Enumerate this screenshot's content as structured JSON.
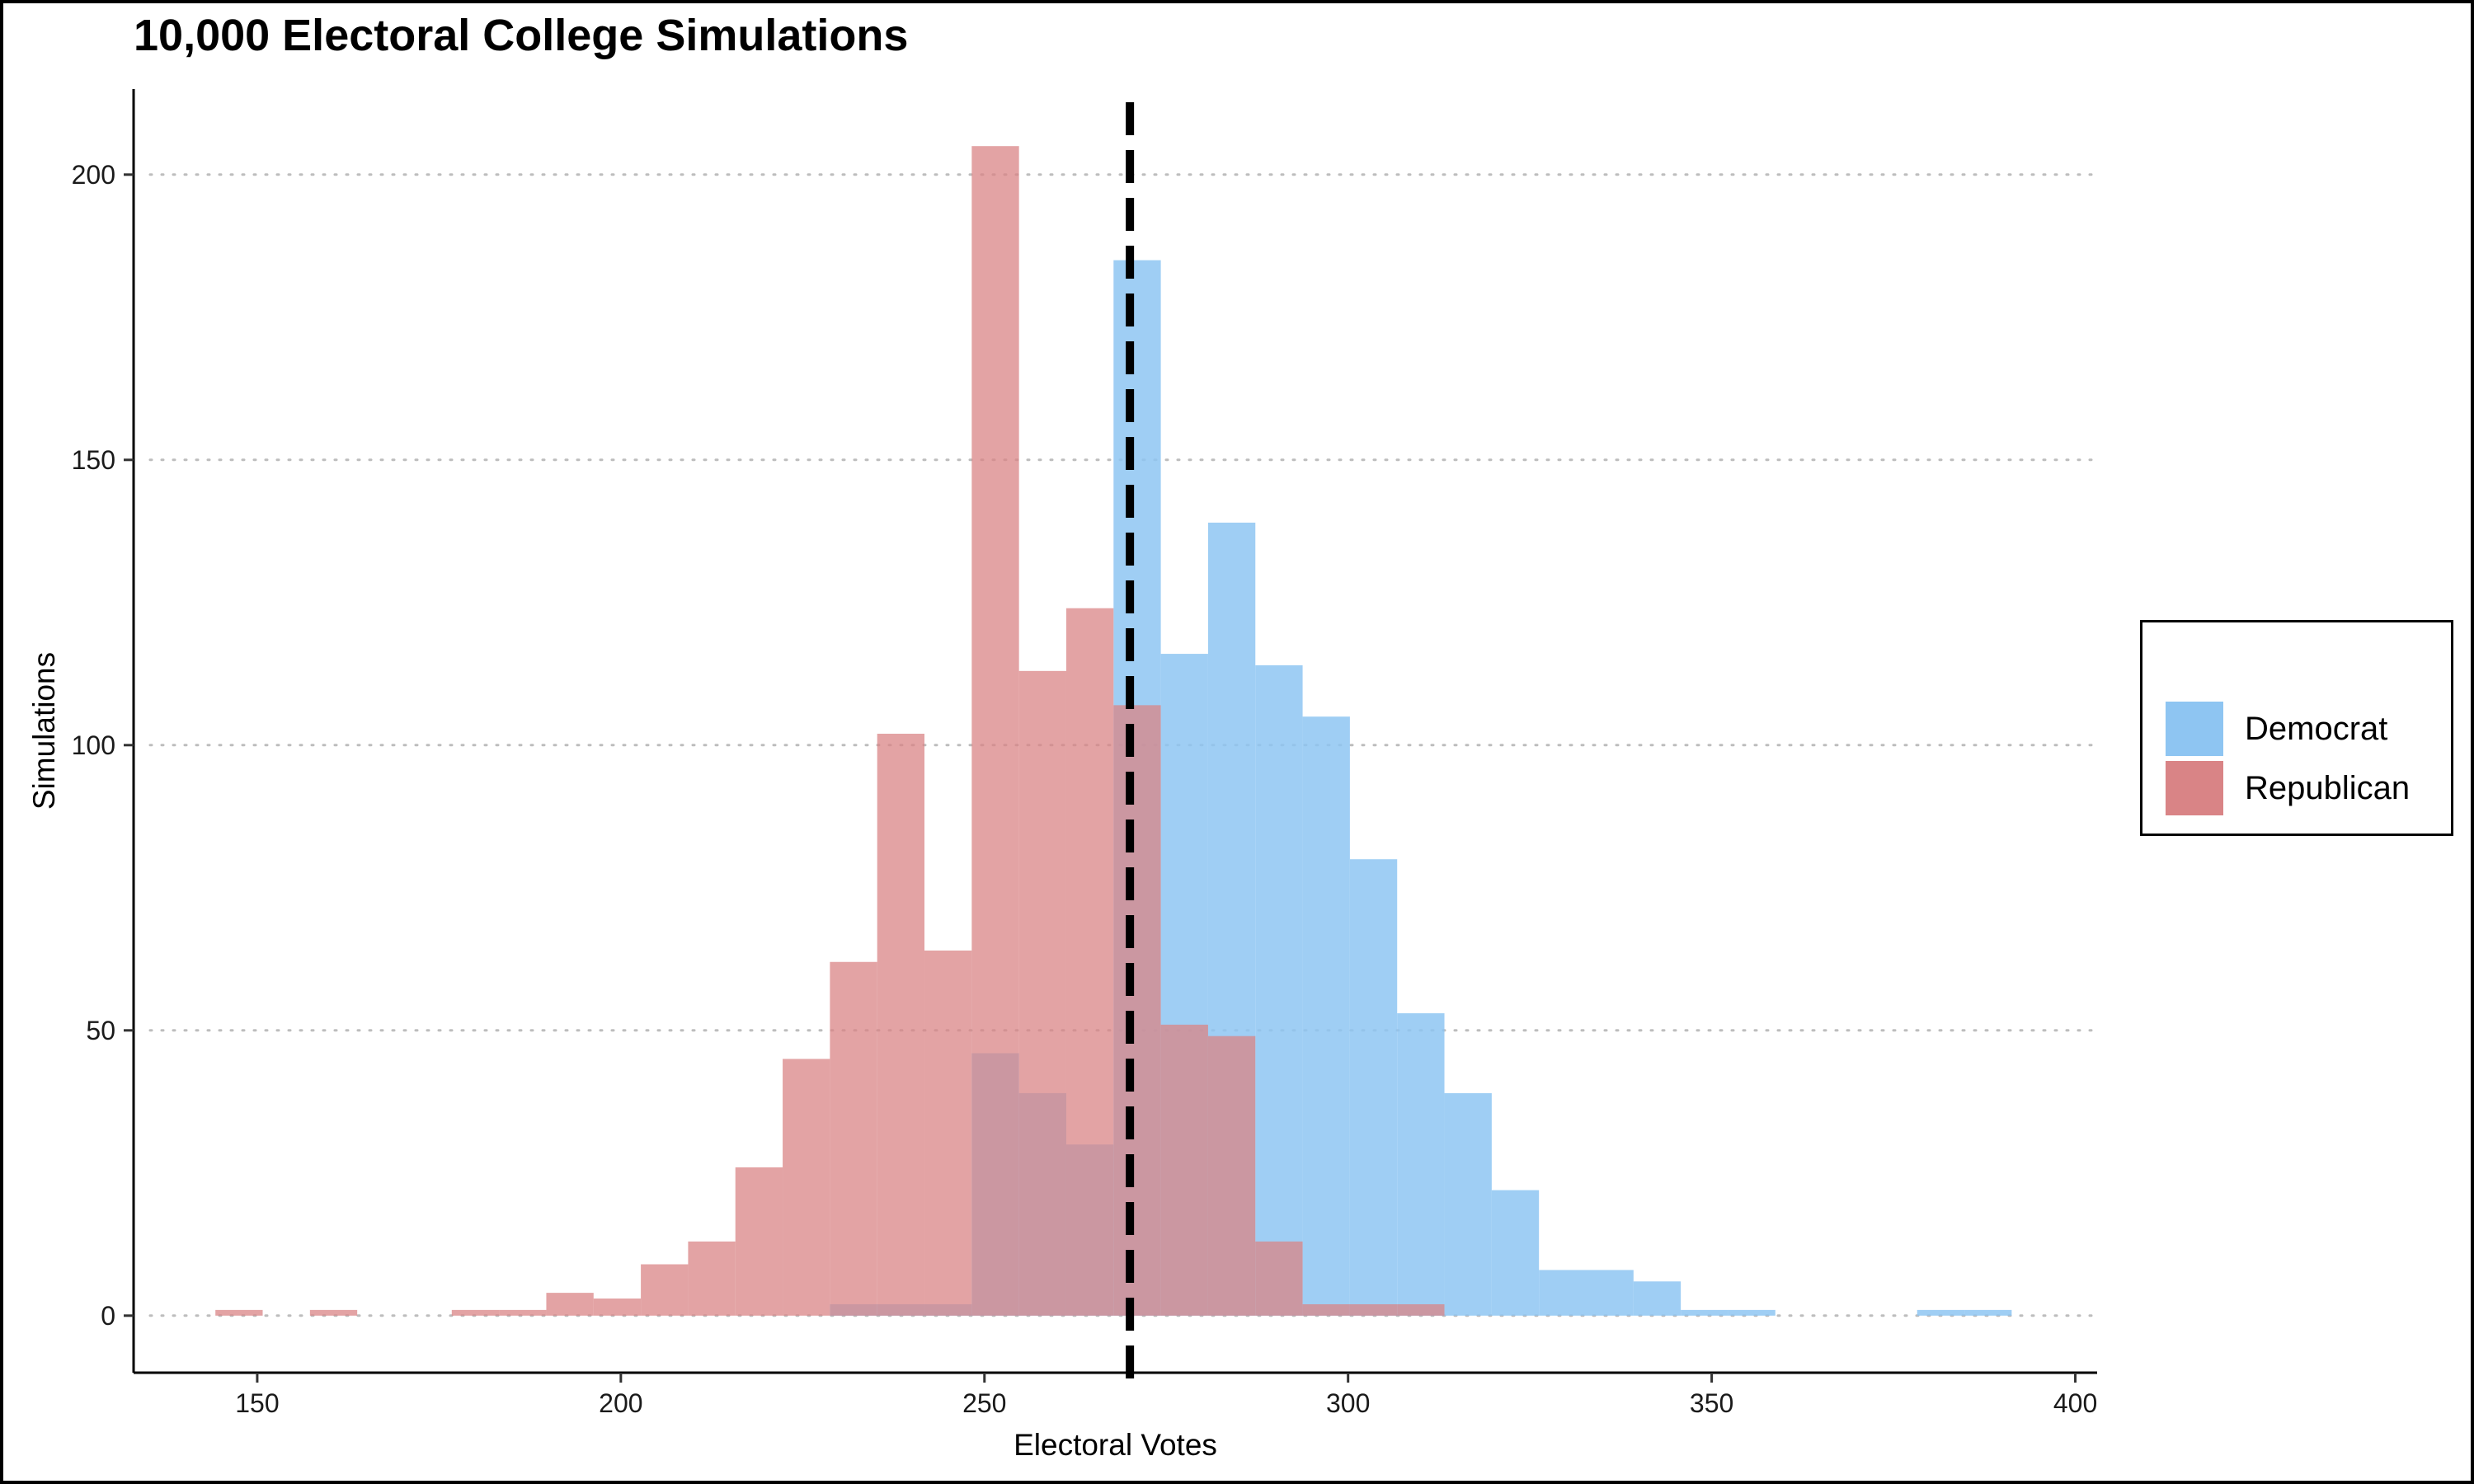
{
  "chart_data": {
    "type": "bar",
    "title": "10,000 Electoral College Simulations",
    "xlabel": "Electoral Votes",
    "ylabel": "Simulations",
    "xlim": [
      133,
      403
    ],
    "ylim": [
      -10,
      215
    ],
    "xticks": [
      150,
      200,
      250,
      300,
      350,
      400
    ],
    "yticks": [
      0,
      50,
      100,
      150,
      200
    ],
    "grid": "horizontal dotted",
    "legend_position": "right",
    "reference_line": {
      "x": 270,
      "style": "dashed",
      "color": "#000000"
    },
    "bin_width": 6.5,
    "series": [
      {
        "name": "Democrat",
        "color": "#8EC5F2",
        "bins": [
          {
            "x": 232,
            "value": 2
          },
          {
            "x": 238.5,
            "value": 2
          },
          {
            "x": 245,
            "value": 2
          },
          {
            "x": 251.5,
            "value": 46
          },
          {
            "x": 258,
            "value": 39
          },
          {
            "x": 264.5,
            "value": 30
          },
          {
            "x": 271,
            "value": 185
          },
          {
            "x": 277.5,
            "value": 116
          },
          {
            "x": 284,
            "value": 139
          },
          {
            "x": 290.5,
            "value": 114
          },
          {
            "x": 297,
            "value": 105
          },
          {
            "x": 303.5,
            "value": 80
          },
          {
            "x": 310,
            "value": 53
          },
          {
            "x": 316.5,
            "value": 39
          },
          {
            "x": 323,
            "value": 22
          },
          {
            "x": 329.5,
            "value": 8
          },
          {
            "x": 336,
            "value": 8
          },
          {
            "x": 342.5,
            "value": 6
          },
          {
            "x": 349,
            "value": 1
          },
          {
            "x": 355.5,
            "value": 1
          },
          {
            "x": 381.5,
            "value": 1
          },
          {
            "x": 388,
            "value": 1
          }
        ]
      },
      {
        "name": "Republican",
        "color": "#D98486",
        "bins": [
          {
            "x": 147.5,
            "value": 1
          },
          {
            "x": 160.5,
            "value": 1
          },
          {
            "x": 180,
            "value": 1
          },
          {
            "x": 186.5,
            "value": 1
          },
          {
            "x": 193,
            "value": 4
          },
          {
            "x": 199.5,
            "value": 3
          },
          {
            "x": 206,
            "value": 9
          },
          {
            "x": 212.5,
            "value": 13
          },
          {
            "x": 219,
            "value": 26
          },
          {
            "x": 225.5,
            "value": 45
          },
          {
            "x": 232,
            "value": 62
          },
          {
            "x": 238.5,
            "value": 102
          },
          {
            "x": 245,
            "value": 64
          },
          {
            "x": 251.5,
            "value": 205
          },
          {
            "x": 258,
            "value": 113
          },
          {
            "x": 264.5,
            "value": 124
          },
          {
            "x": 271,
            "value": 107
          },
          {
            "x": 277.5,
            "value": 51
          },
          {
            "x": 284,
            "value": 49
          },
          {
            "x": 290.5,
            "value": 13
          },
          {
            "x": 297,
            "value": 2
          },
          {
            "x": 303.5,
            "value": 2
          },
          {
            "x": 310,
            "value": 2
          }
        ]
      }
    ]
  }
}
